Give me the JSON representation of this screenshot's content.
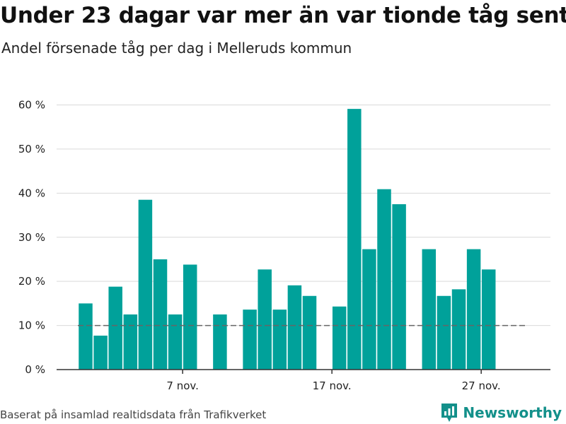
{
  "header": {
    "title": "Under 23 dagar var mer än var tionde tåg sent",
    "subtitle": "Andel försenade tåg per dag i Melleruds kommun"
  },
  "footer": {
    "source": "Baserat på insamlad realtidsdata från Trafikverket",
    "brand": "Newsworthy"
  },
  "colors": {
    "bar": "#00a19a",
    "grid": "#d9d9d9",
    "axis": "#333333",
    "reference_line": "#666666",
    "brand": "#13908a"
  },
  "icons": {
    "brand_logo": "bar-chart-icon"
  },
  "chart_data": {
    "type": "bar",
    "x": [
      "1 nov.",
      "2 nov.",
      "3 nov.",
      "4 nov.",
      "5 nov.",
      "6 nov.",
      "7 nov.",
      "8 nov.",
      "9 nov.",
      "10 nov.",
      "11 nov.",
      "12 nov.",
      "13 nov.",
      "14 nov.",
      "15 nov.",
      "16 nov.",
      "17 nov.",
      "18 nov.",
      "19 nov.",
      "20 nov.",
      "21 nov.",
      "22 nov.",
      "23 nov.",
      "24 nov.",
      "25 nov.",
      "26 nov.",
      "27 nov.",
      "28 nov.",
      "29 nov."
    ],
    "values": [
      15,
      7.7,
      18.8,
      12.5,
      38.5,
      25,
      12.5,
      23.8,
      null,
      12.5,
      null,
      13.6,
      22.7,
      13.6,
      19.1,
      16.7,
      null,
      14.3,
      59.1,
      27.3,
      40.9,
      37.5,
      null,
      27.3,
      16.7,
      18.2,
      27.3,
      22.7,
      null
    ],
    "x_ticks": [
      {
        "date": "7 nov.",
        "label": "7 nov."
      },
      {
        "date": "17 nov.",
        "label": "17 nov."
      },
      {
        "date": "27 nov.",
        "label": "27 nov."
      }
    ],
    "y_ticks": [
      0,
      10,
      20,
      30,
      40,
      50,
      60
    ],
    "y_tick_labels": [
      "0 %",
      "10 %",
      "20 %",
      "30 %",
      "40 %",
      "50 %",
      "60 %"
    ],
    "ylim": [
      0,
      60
    ],
    "reference_line": 10,
    "grid": true,
    "title": "Under 23 dagar var mer än var tionde tåg sent",
    "subtitle": "Andel försenade tåg per dag i Melleruds kommun",
    "xlabel": "",
    "ylabel": ""
  }
}
